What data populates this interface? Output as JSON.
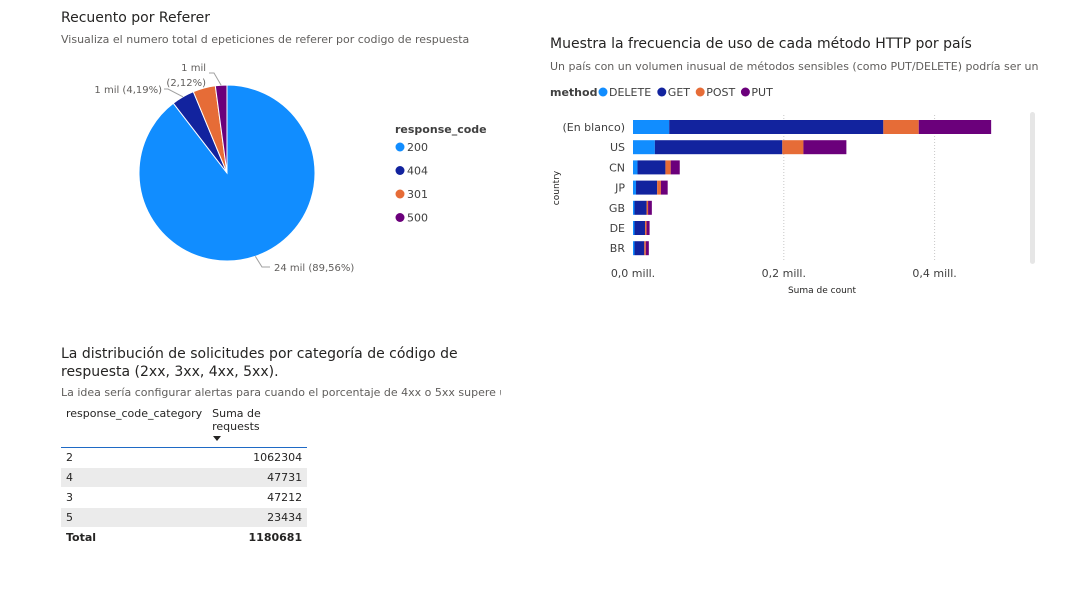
{
  "visual1": {
    "title": "Recuento por Referer",
    "subtitle": "Visualiza el numero total d epeticiones de referer por codigo de respuesta",
    "legend_title": "response_code"
  },
  "visual2": {
    "title": "Muestra la frecuencia de uso de cada método HTTP por país",
    "subtitle": "Un país con un volumen inusual de métodos sensibles (como PUT/DELETE) podría ser un …",
    "legend_title": "method",
    "y_axis_title": "country",
    "x_axis_title": "Suma de count"
  },
  "visual3": {
    "title_line1": "La distribución de solicitudes por categoría de código de",
    "title_line2": "respuesta (2xx, 3xx, 4xx, 5xx).",
    "subtitle": "La idea sería configurar alertas para cuando el porcentaje de 4xx o 5xx supere u…",
    "col1": "response_code_category",
    "col2": "Suma de requests",
    "rows": [
      {
        "category": "2",
        "requests": "1062304"
      },
      {
        "category": "4",
        "requests": "47731"
      },
      {
        "category": "3",
        "requests": "47212"
      },
      {
        "category": "5",
        "requests": "23434"
      }
    ],
    "total_label": "Total",
    "total_value": "1180681"
  },
  "chart_data": [
    {
      "type": "pie",
      "title": "Recuento por Referer",
      "legend_title": "response_code",
      "legend_position": "right",
      "slices": [
        {
          "name": "200",
          "value": 89.56,
          "label": "24 mil (89,56%)",
          "color": "#118dff"
        },
        {
          "name": "404",
          "value": 4.19,
          "label": "1 mil (4,19%)",
          "color": "#12239e"
        },
        {
          "name": "301",
          "value": 4.13,
          "label": "",
          "color": "#e66c37"
        },
        {
          "name": "500",
          "value": 2.12,
          "label_line1": "1 mil",
          "label_line2": "(2,12%)",
          "color": "#6b007b"
        }
      ]
    },
    {
      "type": "bar",
      "orientation": "horizontal",
      "stacked": true,
      "title": "Muestra la frecuencia de uso de cada método HTTP por país",
      "legend_title": "method",
      "legend_position": "top-left",
      "xlabel": "Suma de count",
      "ylabel": "country",
      "xlim": [
        0,
        0.5
      ],
      "x_ticks": [
        0,
        0.2,
        0.4
      ],
      "x_tick_labels": [
        "0,0 mill.",
        "0,2 mill.",
        "0,4 mill."
      ],
      "grid": true,
      "categories": [
        "(En blanco)",
        "US",
        "CN",
        "JP",
        "GB",
        "DE",
        "BR"
      ],
      "series": [
        {
          "name": "DELETE",
          "color": "#118dff",
          "values": [
            0.048,
            0.029,
            0.006,
            0.004,
            0.002,
            0.002,
            0.002
          ]
        },
        {
          "name": "GET",
          "color": "#12239e",
          "values": [
            0.284,
            0.169,
            0.037,
            0.028,
            0.016,
            0.014,
            0.013
          ]
        },
        {
          "name": "POST",
          "color": "#e66c37",
          "values": [
            0.047,
            0.028,
            0.007,
            0.005,
            0.002,
            0.002,
            0.002
          ]
        },
        {
          "name": "PUT",
          "color": "#6b007b",
          "values": [
            0.096,
            0.057,
            0.012,
            0.009,
            0.005,
            0.004,
            0.004
          ]
        }
      ]
    }
  ]
}
